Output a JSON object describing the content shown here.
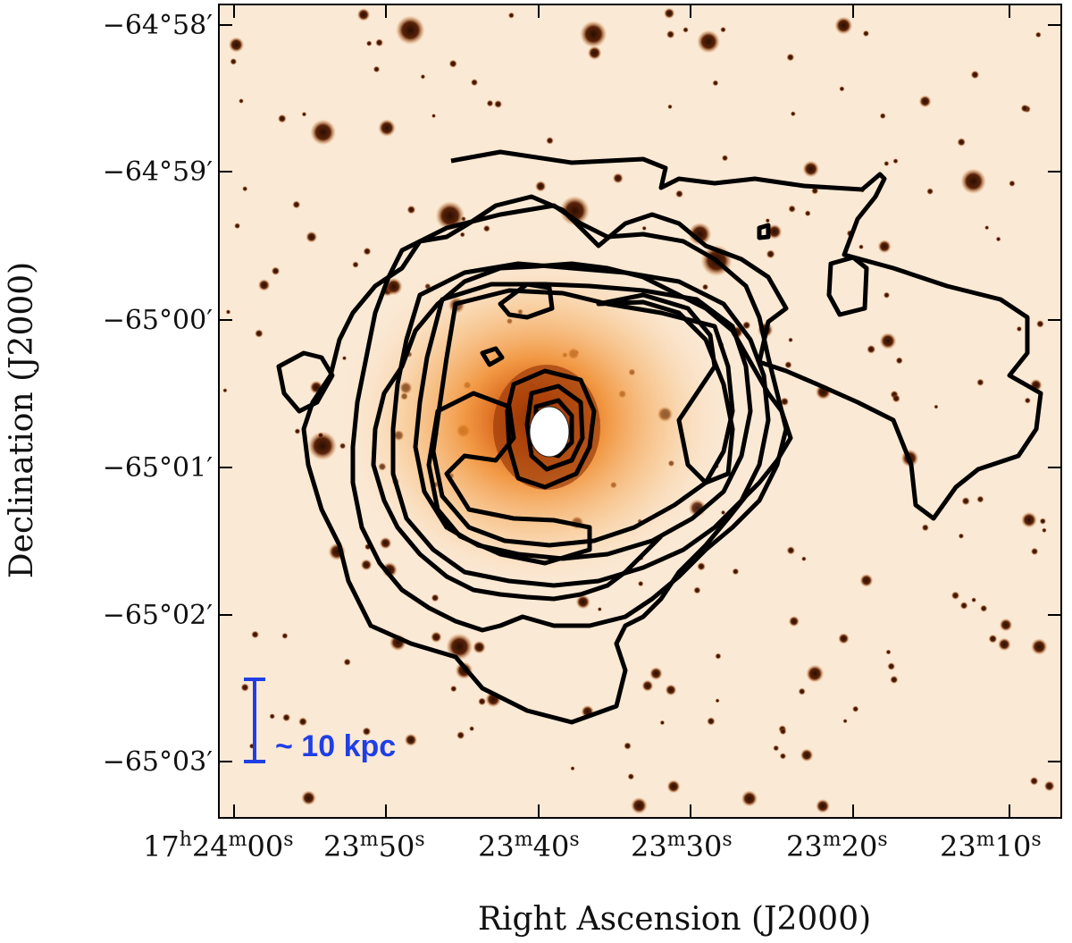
{
  "figure": {
    "x_axis_title": "Right Ascension (J2000)",
    "y_axis_title": "Declination (J2000)",
    "y_tick_labels": [
      "−64°58′",
      "−64°59′",
      "−65°00′",
      "−65°01′",
      "−65°02′",
      "−65°03′"
    ],
    "x_tick_labels": [
      {
        "main": "17",
        "sup1": "h",
        "mid": "24",
        "sup2": "m",
        "end": "00",
        "sup3": "s"
      },
      {
        "main": "23",
        "sup1": "m",
        "mid": "50",
        "sup2": "s",
        "end": "",
        "sup3": ""
      },
      {
        "main": "23",
        "sup1": "m",
        "mid": "40",
        "sup2": "s",
        "end": "",
        "sup3": ""
      },
      {
        "main": "23",
        "sup1": "m",
        "mid": "30",
        "sup2": "s",
        "end": "",
        "sup3": ""
      },
      {
        "main": "23",
        "sup1": "m",
        "mid": "20",
        "sup2": "s",
        "end": "",
        "sup3": ""
      },
      {
        "main": "23",
        "sup1": "m",
        "mid": "10",
        "sup2": "s",
        "end": "",
        "sup3": ""
      }
    ],
    "scale_bar_label": "~ 10 kpc",
    "colors": {
      "background_image": "#fbeee0",
      "galaxy_core": "#e36a10",
      "star": "#3a1405",
      "contour": "#000000",
      "scale_bar": "#1f3fe6"
    }
  }
}
